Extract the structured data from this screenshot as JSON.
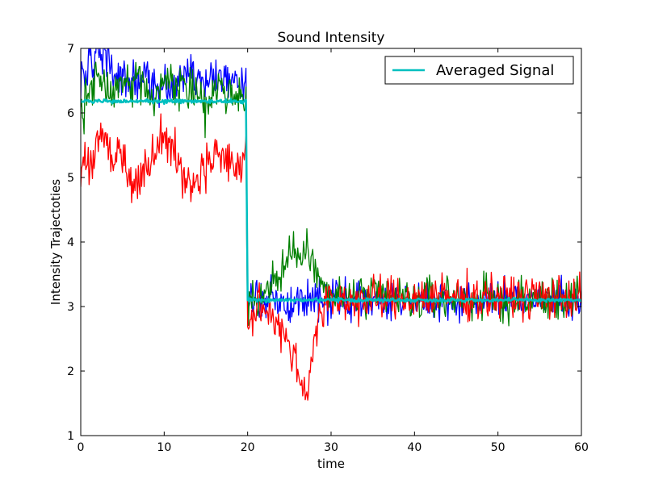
{
  "chart_data": {
    "type": "line",
    "title": "Sound Intensity",
    "xlabel": "time",
    "ylabel": "Intensity Trajectoties",
    "xlim": [
      0,
      60
    ],
    "ylim": [
      1,
      7
    ],
    "xticks": [
      0,
      10,
      20,
      30,
      40,
      50,
      60
    ],
    "yticks": [
      1,
      2,
      3,
      4,
      5,
      6,
      7
    ],
    "legend": {
      "placement": "top-right",
      "entries": [
        "Averaged Signal"
      ]
    },
    "series": [
      {
        "color": "#0000ff",
        "noise": 0.15,
        "x": [
          0,
          1,
          2,
          3,
          4,
          5,
          6,
          7,
          8,
          9,
          10,
          11,
          12,
          13,
          14,
          15,
          16,
          17,
          18,
          19,
          19.8,
          20,
          21,
          22,
          23,
          24,
          25,
          26,
          27,
          28,
          29,
          30,
          35,
          40,
          45,
          50,
          55,
          60
        ],
        "y": [
          6.6,
          6.7,
          6.85,
          6.9,
          6.6,
          6.45,
          6.5,
          6.4,
          6.5,
          6.45,
          6.4,
          6.35,
          6.55,
          6.7,
          6.6,
          6.5,
          6.6,
          6.55,
          6.5,
          6.4,
          6.45,
          3.2,
          3.15,
          3.1,
          3.15,
          3.1,
          3.0,
          3.1,
          3.15,
          3.1,
          3.1,
          3.1,
          3.1,
          3.1,
          3.1,
          3.1,
          3.1,
          3.1
        ]
      },
      {
        "color": "#008000",
        "noise": 0.17,
        "x": [
          0,
          1,
          2,
          3,
          4,
          5,
          6,
          7,
          8,
          9,
          10,
          11,
          12,
          13,
          14,
          15,
          16,
          17,
          18,
          19,
          19.8,
          20,
          21,
          22,
          23,
          24,
          25,
          26,
          27,
          28,
          29,
          30,
          35,
          40,
          45,
          50,
          55,
          60
        ],
        "y": [
          6.0,
          6.3,
          6.6,
          6.45,
          6.3,
          6.5,
          6.45,
          6.55,
          6.4,
          6.2,
          6.5,
          6.55,
          6.35,
          6.4,
          6.2,
          6.05,
          6.3,
          6.4,
          6.3,
          6.2,
          6.25,
          3.15,
          3.15,
          3.2,
          3.3,
          3.5,
          3.75,
          3.95,
          3.9,
          3.6,
          3.25,
          3.15,
          3.15,
          3.1,
          3.15,
          3.1,
          3.1,
          3.15
        ]
      },
      {
        "color": "#ff0000",
        "noise": 0.17,
        "x": [
          0,
          1,
          2,
          3,
          4,
          5,
          6,
          7,
          8,
          9,
          10,
          11,
          12,
          13,
          14,
          15,
          16,
          17,
          18,
          19,
          19.8,
          20,
          21,
          22,
          23,
          24,
          25,
          26,
          27,
          28,
          29,
          30,
          35,
          40,
          45,
          50,
          55,
          60
        ],
        "y": [
          5.1,
          5.2,
          5.6,
          5.65,
          5.4,
          5.3,
          5.0,
          4.9,
          5.2,
          5.5,
          5.75,
          5.5,
          5.05,
          4.85,
          5.0,
          5.2,
          5.35,
          5.4,
          5.15,
          5.1,
          5.45,
          2.75,
          2.9,
          2.95,
          2.85,
          2.7,
          2.45,
          2.0,
          1.65,
          2.5,
          2.95,
          3.1,
          3.1,
          3.15,
          3.15,
          3.15,
          3.15,
          3.15
        ]
      },
      {
        "name": "Averaged Signal",
        "color": "#00bfbf",
        "noise": 0.015,
        "x": [
          0,
          19.8,
          20.0,
          60
        ],
        "y": [
          6.18,
          6.18,
          3.1,
          3.1
        ]
      }
    ]
  }
}
